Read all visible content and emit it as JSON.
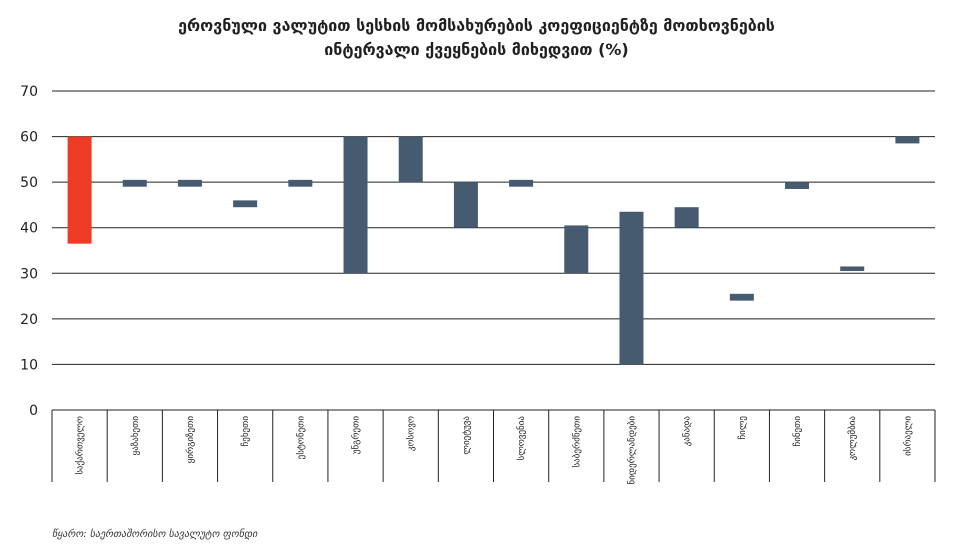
{
  "chart_data": {
    "type": "bar",
    "subtype": "floating-range",
    "title_line1": "ეროვნული ვალუტით სესხის მომსახურების კოეფიციენტზე მოთხოვნების",
    "title_line2": "ინტერვალი ქვეყნების მიხედვით (%)",
    "xlabel": "",
    "ylabel": "",
    "ylim": [
      0,
      70
    ],
    "yticks": [
      0,
      10,
      20,
      30,
      40,
      50,
      60,
      70
    ],
    "grid": true,
    "categories": [
      "საქართველო",
      "ყაზახეთი",
      "ყირგიზეთი",
      "ჩეხეთი",
      "ესტონეთი",
      "უნგრეთი",
      "კოსოვო",
      "ლიეტუვა",
      "სლოვენია",
      "საბერძნეთი",
      "ნიდერლანდები",
      "კანადა",
      "ჩილე",
      "ჩინეთი",
      "კოლუმბია",
      "ისრაელი"
    ],
    "ranges": [
      [
        36.5,
        60
      ],
      [
        49,
        50.5
      ],
      [
        49,
        50.5
      ],
      [
        44.5,
        46
      ],
      [
        49,
        50.5
      ],
      [
        30,
        60
      ],
      [
        50,
        60
      ],
      [
        40,
        50
      ],
      [
        49,
        50.5
      ],
      [
        30,
        40.5
      ],
      [
        10,
        43.5
      ],
      [
        40,
        44.5
      ],
      [
        24,
        25.5
      ],
      [
        48.5,
        50
      ],
      [
        30.5,
        31.5
      ],
      [
        58.5,
        60
      ]
    ],
    "colors": {
      "highlight": "#EE3B24",
      "default": "#465B70",
      "grid": "#222222"
    },
    "highlight_index": 0
  },
  "source": "წყარო: საერთაშორისო სავალუტო ფონდი"
}
